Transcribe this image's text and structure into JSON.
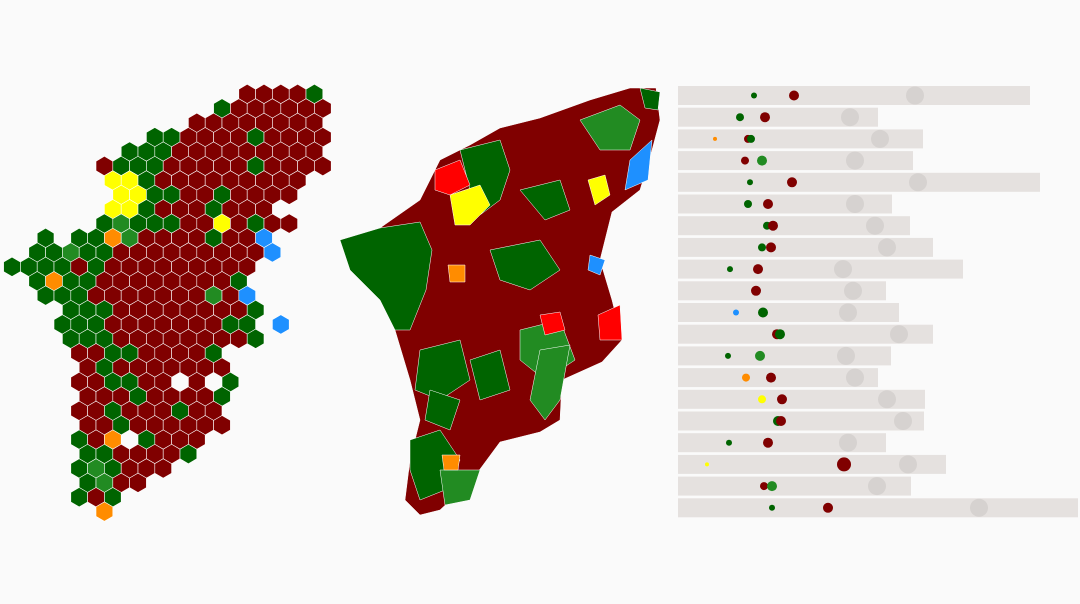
{
  "colors": {
    "R": "#800000",
    "G": "#006400",
    "g": "#228b22",
    "Y": "#ffff00",
    "O": "#ff8c00",
    "B": "#1e90ff",
    "r": "#ff0000",
    "bar": "#e5e1df",
    "ghost": "#d6d2d0"
  }
}
